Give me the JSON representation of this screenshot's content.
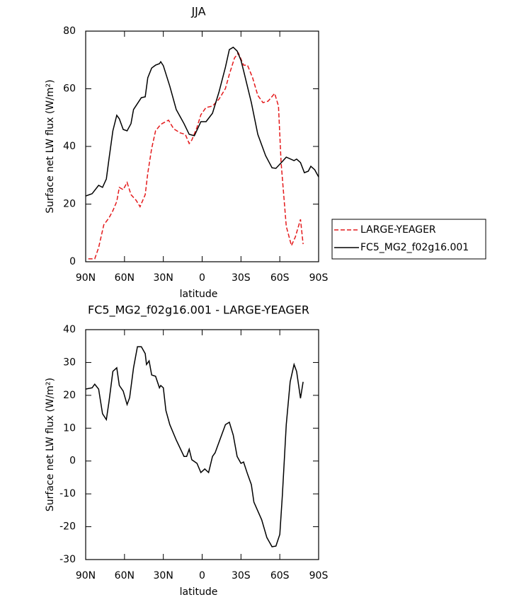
{
  "chart_data": [
    {
      "type": "line",
      "title": "JJA",
      "xlabel": "latitude",
      "ylabel": "Surface net LW flux (W/m²)",
      "xlim": [
        90,
        -90
      ],
      "ylim": [
        0,
        80
      ],
      "xticks": [
        {
          "value": 90,
          "label": "90N"
        },
        {
          "value": 60,
          "label": "60N"
        },
        {
          "value": 30,
          "label": "30N"
        },
        0,
        {
          "value": -30,
          "label": "30S"
        },
        {
          "value": -60,
          "label": "60S"
        },
        {
          "value": -90,
          "label": "90S"
        }
      ],
      "yticks": [
        0,
        20,
        40,
        60,
        80
      ],
      "legend": "right",
      "series": [
        {
          "name": "LARGE-YEAGER",
          "color": "#e41a1c",
          "style": "dashed",
          "x": [
            88,
            83,
            80,
            76,
            72,
            69,
            66,
            64,
            61,
            58,
            55,
            51,
            48,
            44,
            42,
            39,
            36,
            33,
            31,
            26,
            22,
            17,
            13,
            10,
            8,
            4,
            1,
            -3,
            -8,
            -13,
            -18,
            -21,
            -25,
            -28,
            -32,
            -35,
            -39,
            -43,
            -47,
            -51,
            -56,
            -59,
            -61,
            -65,
            -69,
            -72,
            -76,
            -78
          ],
          "values": [
            1.0,
            1.0,
            4.9,
            12.8,
            15.2,
            17.7,
            20.9,
            25.8,
            25.0,
            27.5,
            23.3,
            21.3,
            19.1,
            23.3,
            30.7,
            39.3,
            45.4,
            47.1,
            47.9,
            49.1,
            46.1,
            44.7,
            44.2,
            41.0,
            42.2,
            46.6,
            51.0,
            53.5,
            54.0,
            56.4,
            60.1,
            65.0,
            70.7,
            72.4,
            68.2,
            68.2,
            63.8,
            57.7,
            55.2,
            55.7,
            58.4,
            54.0,
            34.4,
            12.3,
            5.6,
            8.6,
            14.7,
            6.1
          ]
        },
        {
          "name": "FC5_MG2_f02g16.001",
          "color": "#000000",
          "style": "solid",
          "x": [
            90,
            85,
            80,
            77,
            74,
            72,
            69,
            66,
            64,
            61,
            58,
            55,
            53,
            47,
            44,
            42,
            39,
            36,
            33,
            32,
            30,
            25,
            20,
            14,
            10,
            6,
            3,
            1,
            -3,
            -8,
            -13,
            -18,
            -21,
            -24,
            -27,
            -30,
            -32,
            -38,
            -43,
            -49,
            -54,
            -57,
            -62,
            -65,
            -71,
            -73,
            -76,
            -79,
            -82,
            -84,
            -87,
            -90
          ],
          "values": [
            22.8,
            23.6,
            26.5,
            25.8,
            28.7,
            35.6,
            45.4,
            50.8,
            49.6,
            45.9,
            45.4,
            47.9,
            52.8,
            56.9,
            57.2,
            63.8,
            67.2,
            68.2,
            68.7,
            69.4,
            68.0,
            60.9,
            52.8,
            47.9,
            44.2,
            43.7,
            46.6,
            48.6,
            48.6,
            51.5,
            58.9,
            67.5,
            73.6,
            74.4,
            73.1,
            69.9,
            66.3,
            55.2,
            44.2,
            36.8,
            32.6,
            32.4,
            34.8,
            36.3,
            35.1,
            35.6,
            34.4,
            30.9,
            31.4,
            33.1,
            31.9,
            29.4
          ]
        }
      ]
    },
    {
      "type": "line",
      "title": "FC5_MG2_f02g16.001 - LARGE-YEAGER",
      "xlabel": "latitude",
      "ylabel": "Surface net LW flux (W/m²)",
      "xlim": [
        90,
        -90
      ],
      "ylim": [
        -30,
        40
      ],
      "xticks": [
        {
          "value": 90,
          "label": "90N"
        },
        {
          "value": 60,
          "label": "60N"
        },
        {
          "value": 30,
          "label": "30N"
        },
        0,
        {
          "value": -30,
          "label": "30S"
        },
        {
          "value": -60,
          "label": "60S"
        },
        {
          "value": -90,
          "label": "90S"
        }
      ],
      "yticks": [
        -30,
        -20,
        -10,
        0,
        10,
        20,
        30,
        40
      ],
      "series": [
        {
          "color": "#000000",
          "style": "solid",
          "x": [
            90,
            85,
            83,
            80,
            77,
            74,
            72,
            69,
            66,
            64,
            61,
            58,
            56,
            53,
            50,
            47,
            44,
            43,
            41,
            39,
            36,
            33,
            32,
            30,
            28,
            25,
            20,
            14,
            12,
            10,
            8,
            4,
            1,
            -2,
            -5,
            -8,
            -10,
            -14,
            -18,
            -21,
            -24,
            -27,
            -30,
            -32,
            -35,
            -38,
            -40,
            -46,
            -50,
            -54,
            -57,
            -60,
            -62,
            -65,
            -68,
            -71,
            -73,
            -76,
            -78
          ],
          "values": [
            21.9,
            22.3,
            23.4,
            21.9,
            14.4,
            12.6,
            18.0,
            27.3,
            28.4,
            23.0,
            21.3,
            17.2,
            19.3,
            28.4,
            34.8,
            34.8,
            32.7,
            29.4,
            30.5,
            26.2,
            25.8,
            22.3,
            23.0,
            22.3,
            15.4,
            11.1,
            6.4,
            1.4,
            1.4,
            3.6,
            0.4,
            -0.7,
            -3.5,
            -2.4,
            -3.5,
            1.4,
            2.5,
            6.8,
            11.1,
            11.8,
            7.9,
            1.4,
            -0.7,
            -0.3,
            -3.9,
            -7.2,
            -12.5,
            -17.9,
            -23.3,
            -26.1,
            -25.9,
            -22.3,
            -10.4,
            11.1,
            24.1,
            29.4,
            27.3,
            19.1,
            24.1
          ]
        }
      ]
    }
  ]
}
